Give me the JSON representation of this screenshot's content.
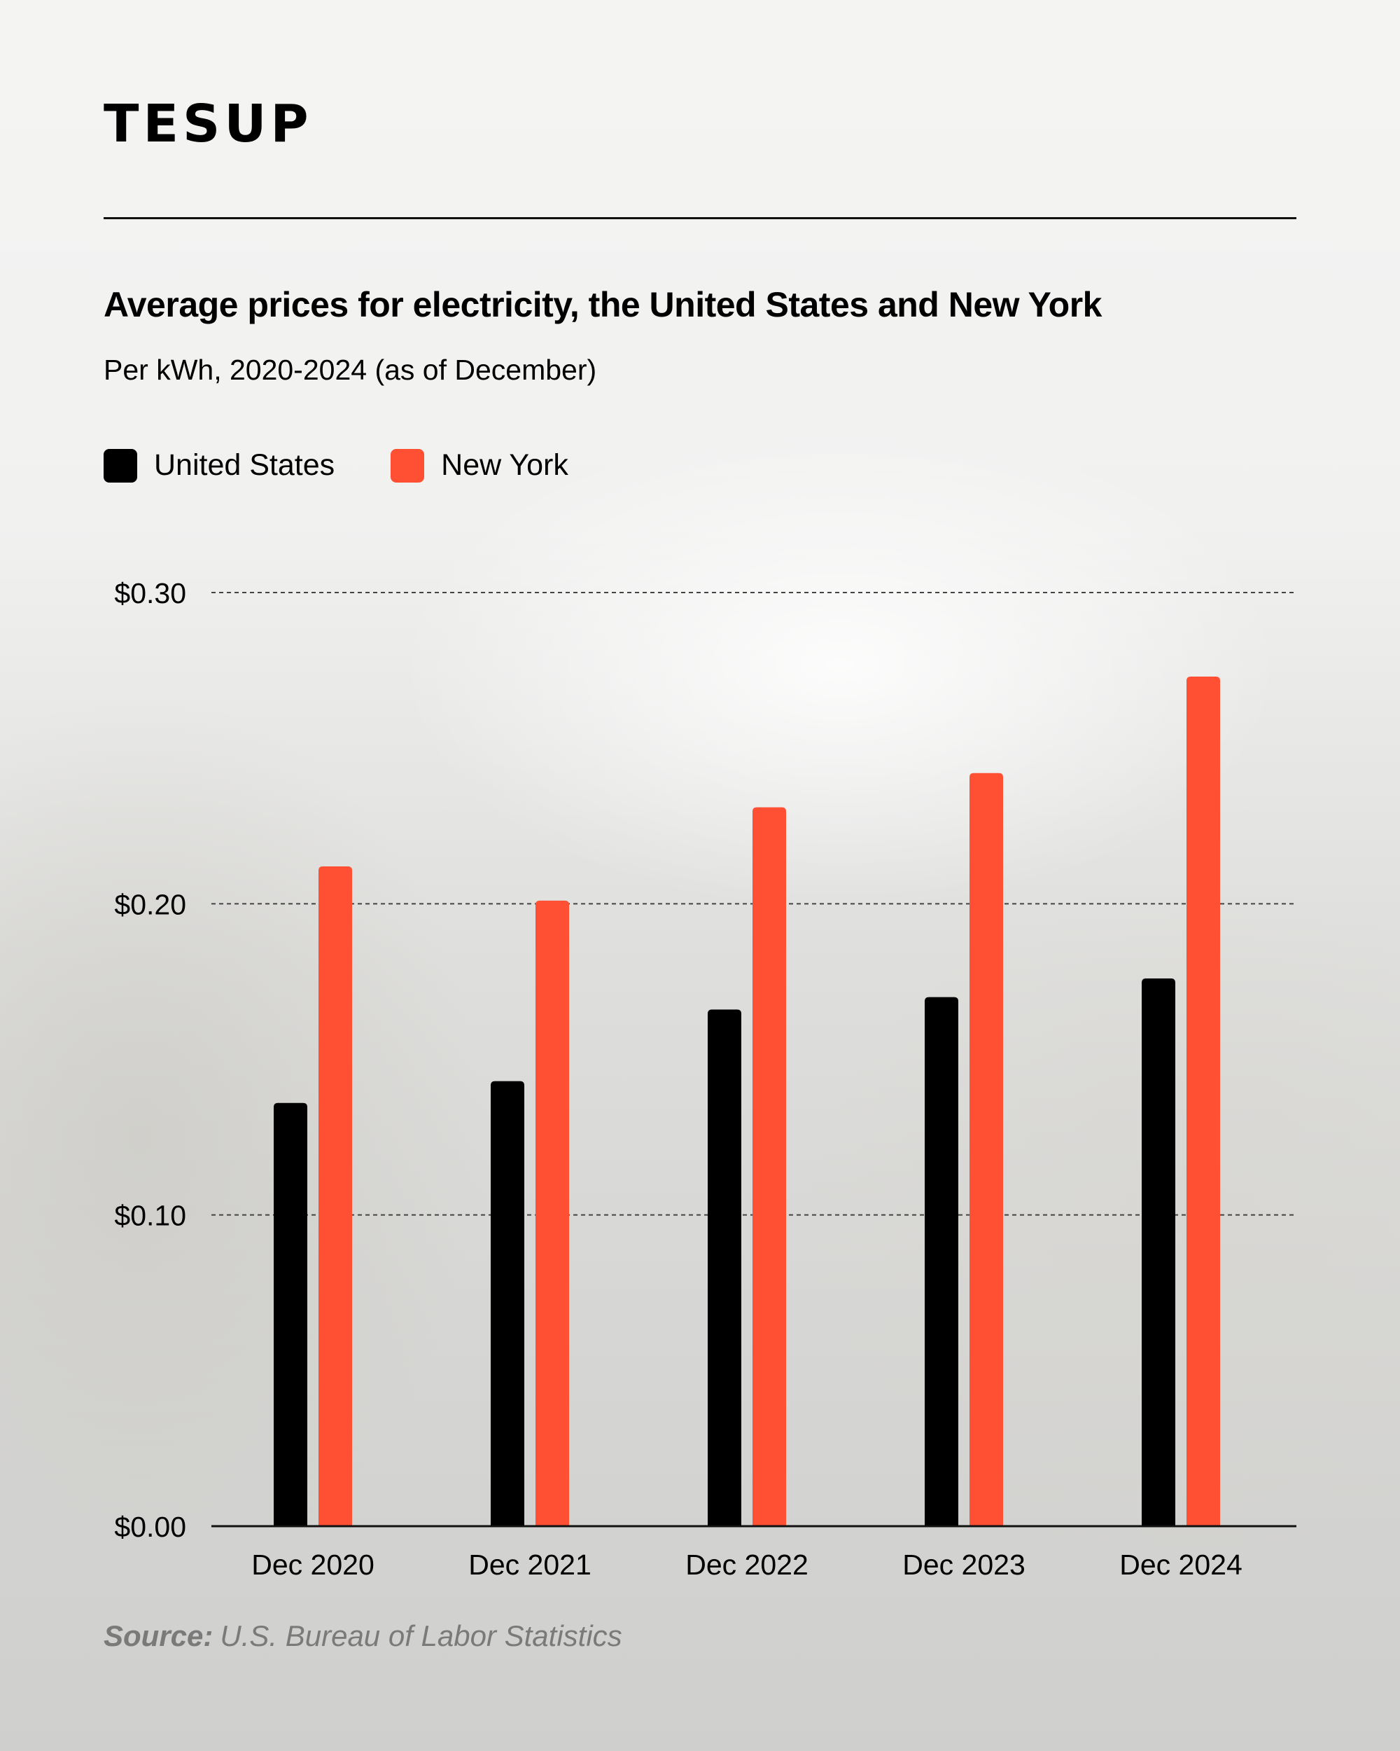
{
  "brand": {
    "logo_text": "TESUP"
  },
  "source": {
    "label": "Source:",
    "text": "U.S. Bureau of Labor Statistics"
  },
  "colors": {
    "united_states": "#000000",
    "new_york": "#ff5034",
    "grid": "#444444",
    "axis": "#111111"
  },
  "chart_data": {
    "type": "bar",
    "title": "Average prices for electricity, the United States and New York",
    "subtitle": "Per kWh, 2020-2024 (as of December)",
    "categories": [
      "Dec 2020",
      "Dec 2021",
      "Dec 2022",
      "Dec 2023",
      "Dec 2024"
    ],
    "series": [
      {
        "name": "United States",
        "color": "#000000",
        "values": [
          0.136,
          0.143,
          0.166,
          0.17,
          0.176
        ]
      },
      {
        "name": "New York",
        "color": "#ff5034",
        "values": [
          0.212,
          0.201,
          0.231,
          0.242,
          0.273
        ]
      }
    ],
    "yticks": [
      {
        "value": 0.0,
        "label": "$0.00"
      },
      {
        "value": 0.1,
        "label": "$0.10"
      },
      {
        "value": 0.2,
        "label": "$0.20"
      },
      {
        "value": 0.3,
        "label": "$0.30"
      }
    ],
    "ylim": [
      0,
      0.3
    ],
    "grid": true,
    "legend_position": "top-left",
    "xlabel": "",
    "ylabel": ""
  }
}
